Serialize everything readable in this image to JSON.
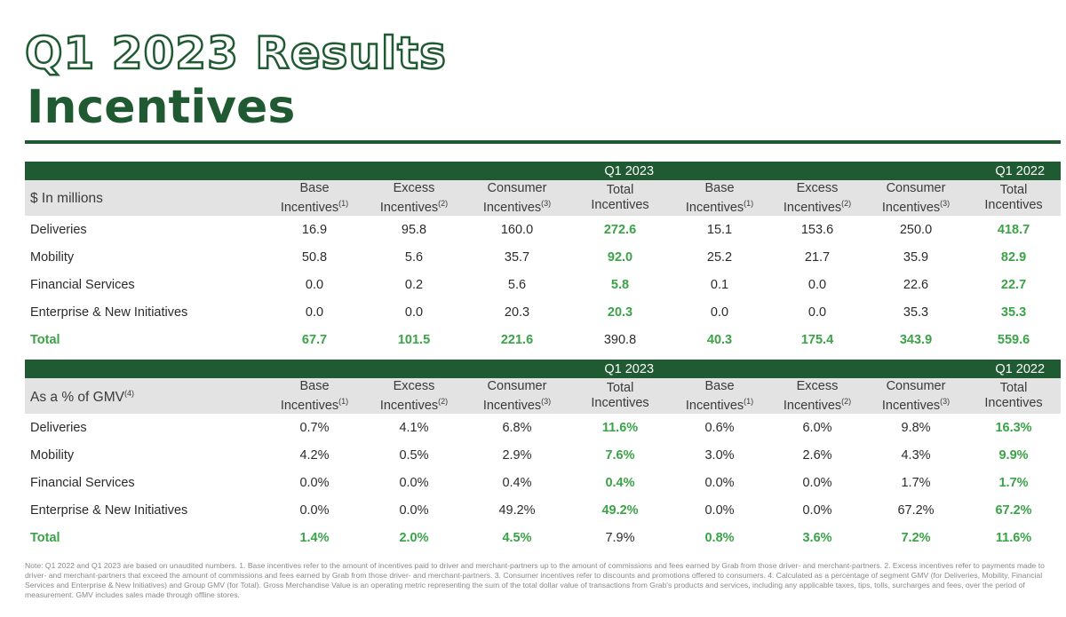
{
  "page": {
    "title": "Q1 2023 Results",
    "subtitle": "Incentives"
  },
  "periods": [
    "Q1 2023",
    "Q1 2022"
  ],
  "column_headers": [
    {
      "line1": "Base",
      "line2": "Incentives",
      "note": "(1)"
    },
    {
      "line1": "Excess",
      "line2": "Incentives",
      "note": "(2)"
    },
    {
      "line1": "Consumer",
      "line2": "Incentives",
      "note": "(3)"
    },
    {
      "line1": "Total",
      "line2": "Incentives",
      "note": ""
    }
  ],
  "table1": {
    "label": "$ In millions",
    "rows": [
      {
        "name": "Deliveries",
        "values": [
          "16.9",
          "95.8",
          "160.0",
          "272.6",
          "15.1",
          "153.6",
          "250.0",
          "418.7"
        ]
      },
      {
        "name": "Mobility",
        "values": [
          "50.8",
          "5.6",
          "35.7",
          "92.0",
          "25.2",
          "21.7",
          "35.9",
          "82.9"
        ]
      },
      {
        "name": "Financial Services",
        "values": [
          "0.0",
          "0.2",
          "5.6",
          "5.8",
          "0.1",
          "0.0",
          "22.6",
          "22.7"
        ]
      },
      {
        "name": "Enterprise & New Initiatives",
        "values": [
          "0.0",
          "0.0",
          "20.3",
          "20.3",
          "0.0",
          "0.0",
          "35.3",
          "35.3"
        ]
      }
    ],
    "total": {
      "name": "Total",
      "values": [
        "67.7",
        "101.5",
        "221.6",
        "390.8",
        "40.3",
        "175.4",
        "343.9",
        "559.6"
      ]
    }
  },
  "table2": {
    "label": "As a % of GMV",
    "label_note": "(4)",
    "rows": [
      {
        "name": "Deliveries",
        "values": [
          "0.7%",
          "4.1%",
          "6.8%",
          "11.6%",
          "0.6%",
          "6.0%",
          "9.8%",
          "16.3%"
        ]
      },
      {
        "name": "Mobility",
        "values": [
          "4.2%",
          "0.5%",
          "2.9%",
          "7.6%",
          "3.0%",
          "2.6%",
          "4.3%",
          "9.9%"
        ]
      },
      {
        "name": "Financial Services",
        "values": [
          "0.0%",
          "0.0%",
          "0.4%",
          "0.4%",
          "0.0%",
          "0.0%",
          "1.7%",
          "1.7%"
        ]
      },
      {
        "name": "Enterprise & New Initiatives",
        "values": [
          "0.0%",
          "0.0%",
          "49.2%",
          "49.2%",
          "0.0%",
          "0.0%",
          "67.2%",
          "67.2%"
        ]
      }
    ],
    "total": {
      "name": "Total",
      "values": [
        "1.4%",
        "2.0%",
        "4.5%",
        "7.9%",
        "0.8%",
        "3.6%",
        "7.2%",
        "11.6%"
      ]
    }
  },
  "footnote": "Note: Q1 2022 and Q1 2023 are based on unaudited numbers. 1. Base incentives refer to the amount of incentives paid to driver and merchant-partners up to the amount of commissions and fees earned by Grab from those driver- and merchant-partners. 2. Excess incentives refer to payments made to driver- and merchant-partners that exceed the amount of commissions and fees earned by Grab from those driver- and merchant-partners. 3. Consumer incentives refer to discounts and promotions offered to consumers. 4. Calculated as a percentage of segment GMV (for Deliveries, Mobility, Financial Services and Enterprise & New Initiatives) and Group GMV (for Total). Gross Merchandise Value is an operating metric representing the sum of the total dollar value of transactions from Grab's products and services, including any applicable taxes, tips, tolls, surcharges and fees, over the period of measurement. GMV includes sales made through offline stores.",
  "colors": {
    "brand_green": "#1f5a32",
    "highlight_green": "#3aa347",
    "header_gray": "#e3e3e3"
  }
}
